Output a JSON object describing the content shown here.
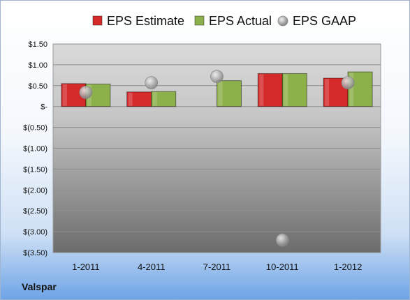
{
  "chart_data": {
    "type": "bar",
    "company": "Valspar",
    "categories": [
      "1-2011",
      "4-2011",
      "7-2011",
      "10-2011",
      "1-2012"
    ],
    "series": [
      {
        "name": "EPS Estimate",
        "kind": "bar",
        "color": "#d42a2a",
        "values": [
          0.55,
          0.35,
          null,
          0.79,
          0.68
        ]
      },
      {
        "name": "EPS Actual",
        "kind": "bar",
        "color": "#8cb04a",
        "values": [
          0.54,
          0.36,
          0.62,
          0.79,
          0.83
        ]
      },
      {
        "name": "EPS GAAP",
        "kind": "marker",
        "color": "#b8b8b8",
        "values": [
          0.34,
          0.57,
          0.72,
          -3.2,
          0.57
        ]
      }
    ],
    "y_ticks": [
      1.5,
      1.0,
      0.5,
      0,
      -0.5,
      -1.0,
      -1.5,
      -2.0,
      -2.5,
      -3.0,
      -3.5
    ],
    "y_tick_labels": [
      "$1.50",
      "$1.00",
      "$0.50",
      "$-",
      "$(0.50)",
      "$(1.00)",
      "$(1.50)",
      "$(2.00)",
      "$(2.50)",
      "$(3.00)",
      "$(3.50)"
    ],
    "ylim": [
      -3.5,
      1.5
    ],
    "grid": true,
    "legend_position": "top"
  }
}
